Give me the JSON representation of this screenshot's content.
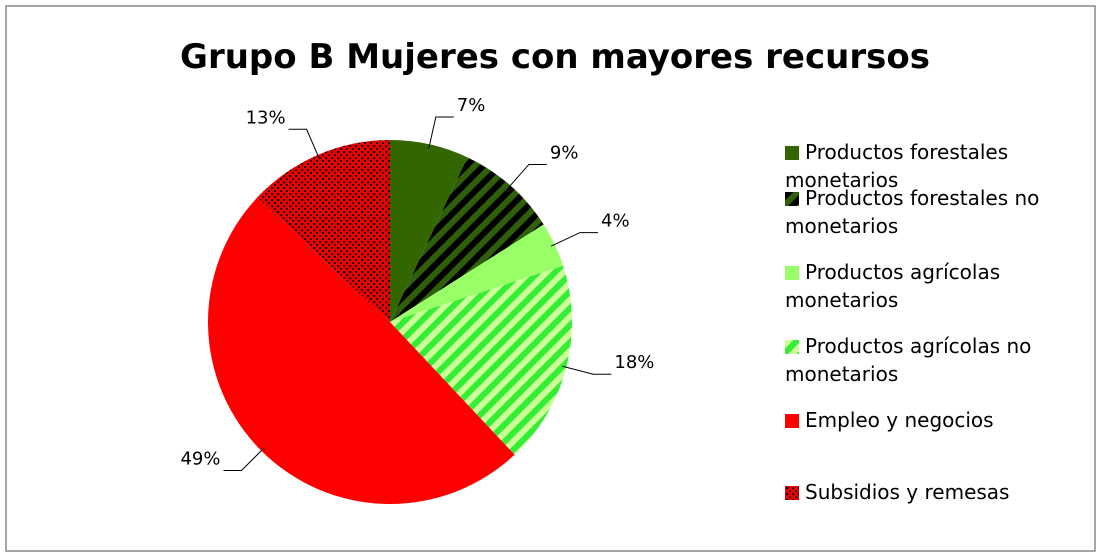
{
  "chart_data": {
    "type": "pie",
    "title": "Grupo B Mujeres con mayores recursos",
    "categories": [
      "Productos forestales monetarios",
      "Productos forestales no monetarios",
      "Productos agrícolas monetarios",
      "Productos agrícolas no monetarios",
      "Empleo y negocios",
      "Subsidios y remesas"
    ],
    "values": [
      7,
      9,
      4,
      18,
      49,
      13
    ],
    "value_labels": [
      "7%",
      "9%",
      "4%",
      "18%",
      "49%",
      "13%"
    ],
    "colors": [
      "#336600",
      "#2f5f0a",
      "#99ff66",
      "#33ee33",
      "#ff0000",
      "#ee0000"
    ],
    "patterns": [
      "solid",
      "stripes",
      "solid",
      "stripes",
      "solid",
      "dots"
    ],
    "pattern_colors": [
      null,
      "#000000",
      null,
      "#ccff99",
      null,
      "#220000"
    ],
    "legend": "right"
  }
}
